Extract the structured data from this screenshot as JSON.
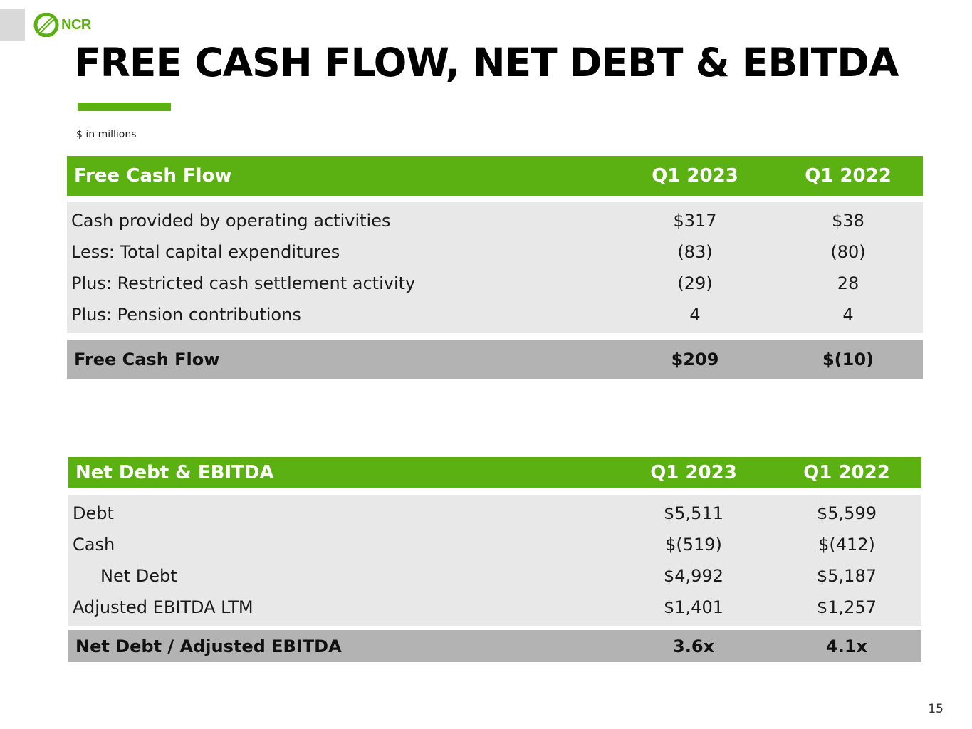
{
  "brand": {
    "logo_text": "NCR",
    "accent_color": "#5bb112",
    "logo_icon": "ncr-logo-icon"
  },
  "title": "FREE CASH FLOW, NET DEBT & EBITDA",
  "units_note": "$ in millions",
  "free_cash_flow_table": {
    "header": {
      "label": "Free Cash Flow",
      "col_a": "Q1 2023",
      "col_b": "Q1 2022"
    },
    "rows": [
      {
        "label": "Cash provided by operating activities",
        "a": "$317",
        "b": "$38"
      },
      {
        "label": "Less: Total capital expenditures",
        "a": "(83)",
        "b": "(80)"
      },
      {
        "label": "Plus: Restricted cash settlement activity",
        "a": "(29)",
        "b": "28"
      },
      {
        "label": "Plus: Pension contributions",
        "a": "4",
        "b": "4"
      }
    ],
    "total": {
      "label": "Free Cash Flow",
      "a": "$209",
      "b": "$(10)"
    }
  },
  "net_debt_table": {
    "header": {
      "label": "Net Debt & EBITDA",
      "col_a": "Q1 2023",
      "col_b": "Q1 2022"
    },
    "rows": [
      {
        "label": "Debt",
        "a": "$5,511",
        "b": "$5,599"
      },
      {
        "label": "Cash",
        "a": "$(519)",
        "b": "$(412)"
      },
      {
        "label": "Net Debt",
        "a": "$4,992",
        "b": "$5,187"
      },
      {
        "label": "Adjusted EBITDA LTM",
        "a": "$1,401",
        "b": "$1,257"
      }
    ],
    "total": {
      "label": "Net Debt / Adjusted EBITDA",
      "a": "3.6x",
      "b": "4.1x"
    }
  },
  "page_number": "15"
}
